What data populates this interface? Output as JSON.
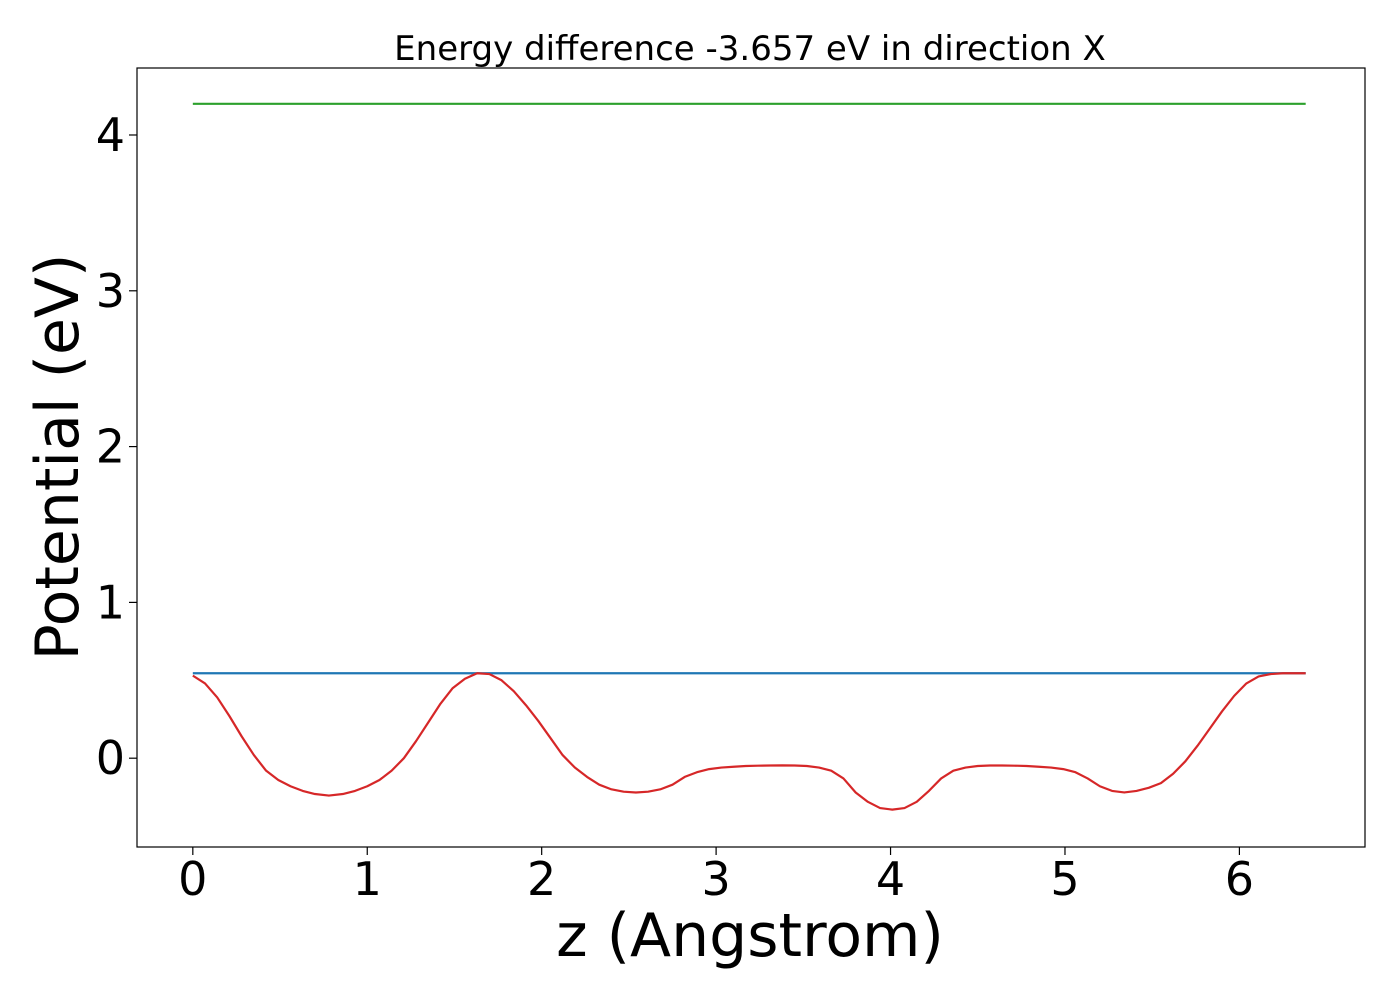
{
  "chart_data": {
    "type": "line",
    "title": "Energy difference -3.657 eV in direction X",
    "xlabel": "z (Angstrom)",
    "ylabel": "Potential (eV)",
    "xlim": [
      -0.32,
      6.72
    ],
    "ylim": [
      -0.57,
      4.43
    ],
    "xticks": [
      0,
      1,
      2,
      3,
      4,
      5,
      6
    ],
    "yticks": [
      0,
      1,
      2,
      3,
      4
    ],
    "grid": false,
    "series": [
      {
        "color": "#2ca02c",
        "x": [
          0,
          6.38
        ],
        "y": [
          4.2,
          4.2
        ]
      },
      {
        "color": "#1f77b4",
        "x": [
          0,
          6.38
        ],
        "y": [
          0.545,
          0.545
        ]
      },
      {
        "color": "#d62728",
        "x": [
          0,
          0.07,
          0.14,
          0.21,
          0.28,
          0.35,
          0.42,
          0.49,
          0.56,
          0.63,
          0.7,
          0.78,
          0.86,
          0.93,
          1.0,
          1.07,
          1.14,
          1.21,
          1.28,
          1.35,
          1.42,
          1.49,
          1.56,
          1.63,
          1.7,
          1.77,
          1.84,
          1.91,
          1.98,
          2.05,
          2.12,
          2.19,
          2.26,
          2.33,
          2.4,
          2.47,
          2.54,
          2.61,
          2.68,
          2.75,
          2.82,
          2.89,
          2.96,
          3.03,
          3.1,
          3.17,
          3.24,
          3.31,
          3.38,
          3.45,
          3.52,
          3.59,
          3.66,
          3.73,
          3.8,
          3.87,
          3.94,
          4.01,
          4.08,
          4.15,
          4.22,
          4.29,
          4.36,
          4.43,
          4.5,
          4.57,
          4.64,
          4.71,
          4.78,
          4.85,
          4.92,
          4.99,
          5.06,
          5.13,
          5.2,
          5.27,
          5.34,
          5.41,
          5.48,
          5.55,
          5.62,
          5.69,
          5.76,
          5.83,
          5.9,
          5.97,
          6.04,
          6.11,
          6.18,
          6.25,
          6.31,
          6.38
        ],
        "y": [
          0.53,
          0.48,
          0.39,
          0.27,
          0.14,
          0.02,
          -0.08,
          -0.14,
          -0.18,
          -0.21,
          -0.23,
          -0.24,
          -0.23,
          -0.21,
          -0.18,
          -0.14,
          -0.08,
          0.0,
          0.11,
          0.23,
          0.35,
          0.45,
          0.51,
          0.545,
          0.54,
          0.5,
          0.43,
          0.34,
          0.24,
          0.13,
          0.02,
          -0.06,
          -0.12,
          -0.17,
          -0.2,
          -0.215,
          -0.22,
          -0.215,
          -0.2,
          -0.17,
          -0.12,
          -0.09,
          -0.07,
          -0.06,
          -0.055,
          -0.05,
          -0.048,
          -0.047,
          -0.046,
          -0.047,
          -0.05,
          -0.06,
          -0.08,
          -0.13,
          -0.22,
          -0.28,
          -0.32,
          -0.33,
          -0.32,
          -0.28,
          -0.21,
          -0.13,
          -0.08,
          -0.06,
          -0.05,
          -0.047,
          -0.047,
          -0.048,
          -0.05,
          -0.055,
          -0.06,
          -0.07,
          -0.09,
          -0.13,
          -0.18,
          -0.21,
          -0.22,
          -0.21,
          -0.19,
          -0.16,
          -0.1,
          -0.02,
          0.08,
          0.19,
          0.3,
          0.4,
          0.48,
          0.525,
          0.54,
          0.545,
          0.545,
          0.545
        ]
      }
    ]
  }
}
